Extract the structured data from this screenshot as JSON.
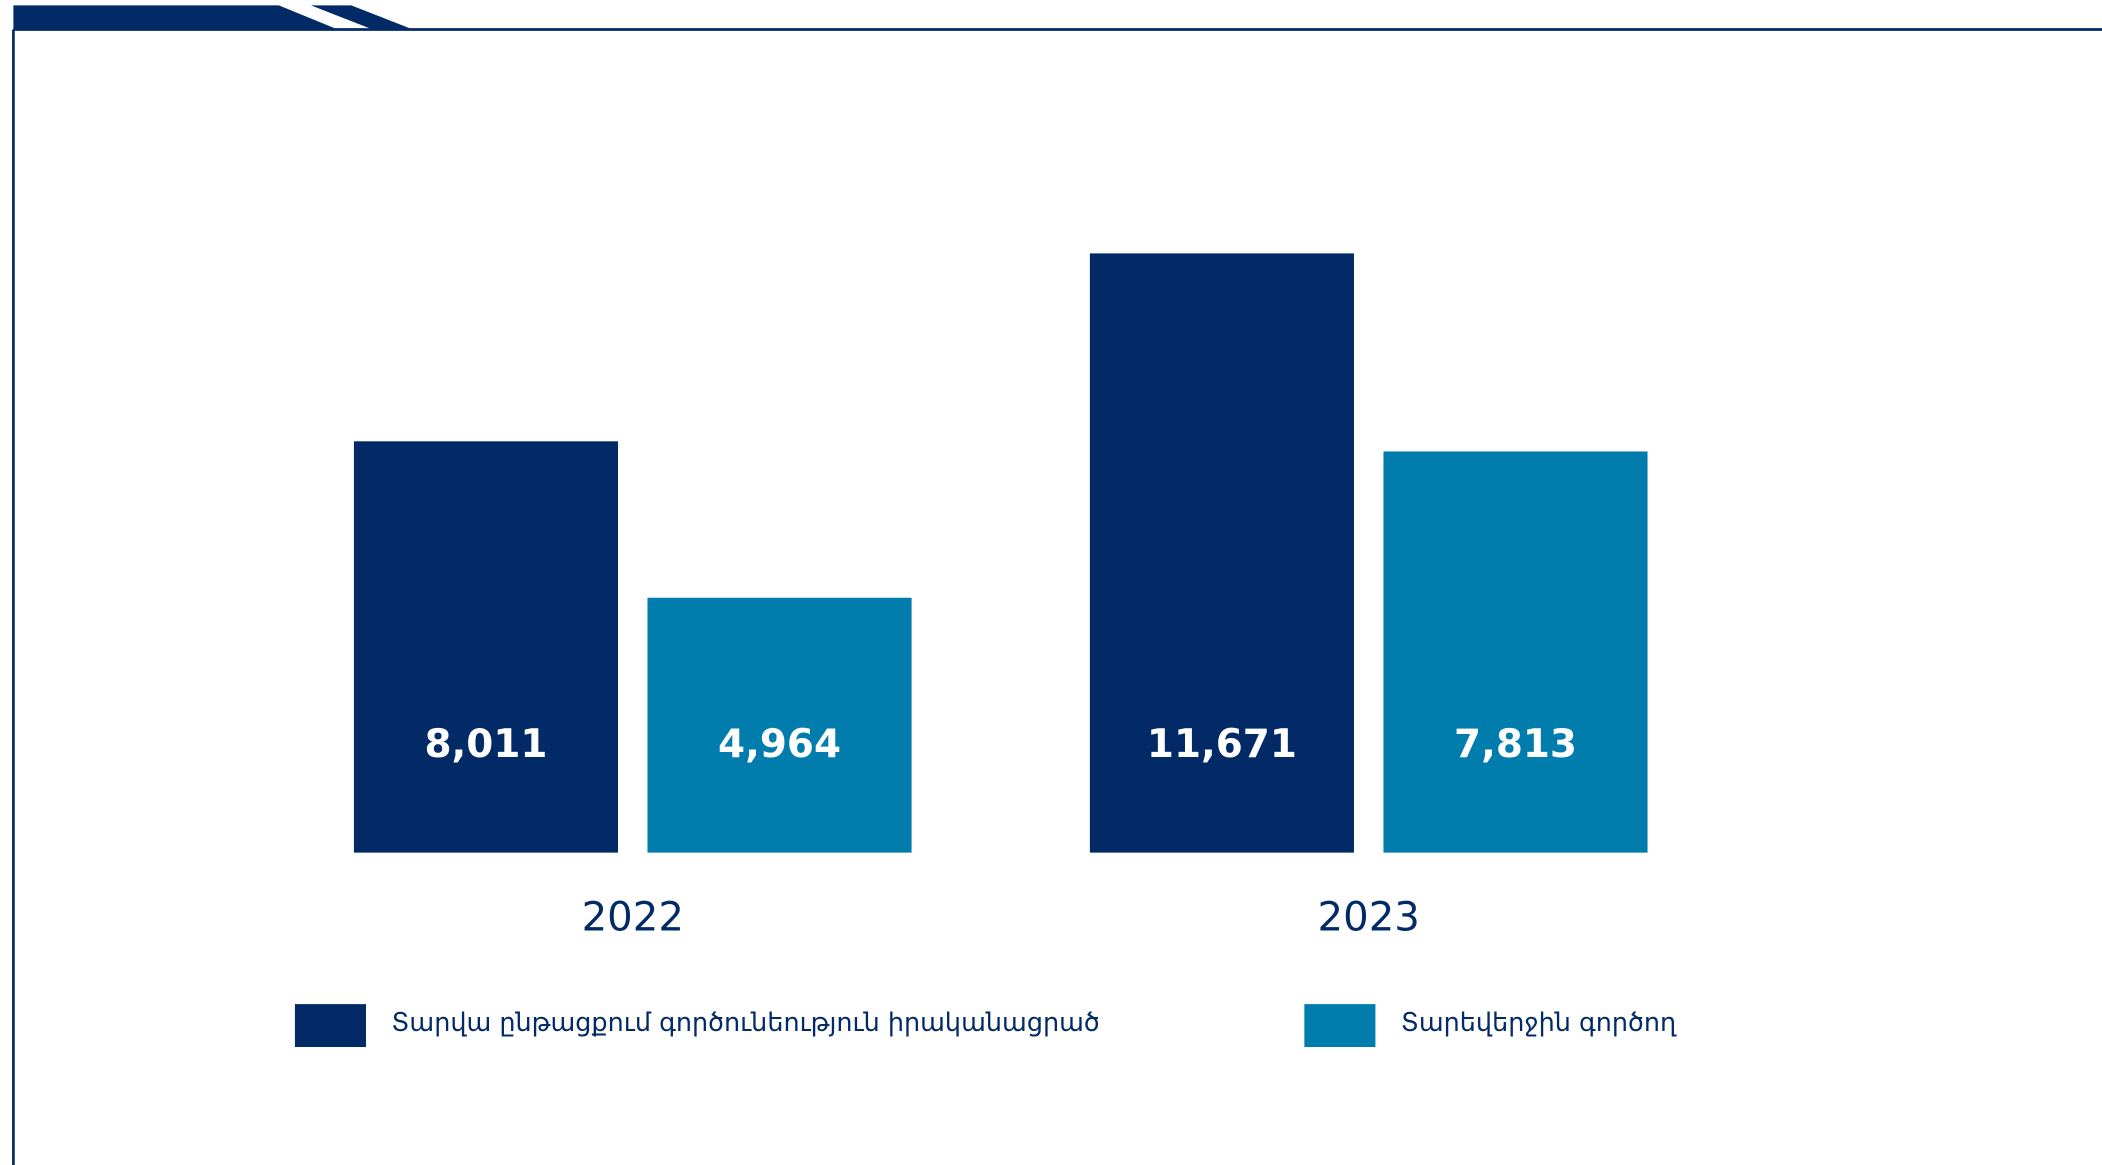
{
  "chart_data": {
    "type": "bar",
    "categories": [
      "2022",
      "2023"
    ],
    "series": [
      {
        "name": "Տարվա ընթացքում գործունեություն իրականացրած",
        "color": "#022a67",
        "values": [
          8011,
          11671
        ],
        "value_labels": [
          "8,011",
          "11,671"
        ]
      },
      {
        "name": "Տարեվերջին գործող",
        "color": "#007cad",
        "values": [
          4964,
          7813
        ],
        "value_labels": [
          "4,964",
          "7,813"
        ]
      }
    ]
  }
}
